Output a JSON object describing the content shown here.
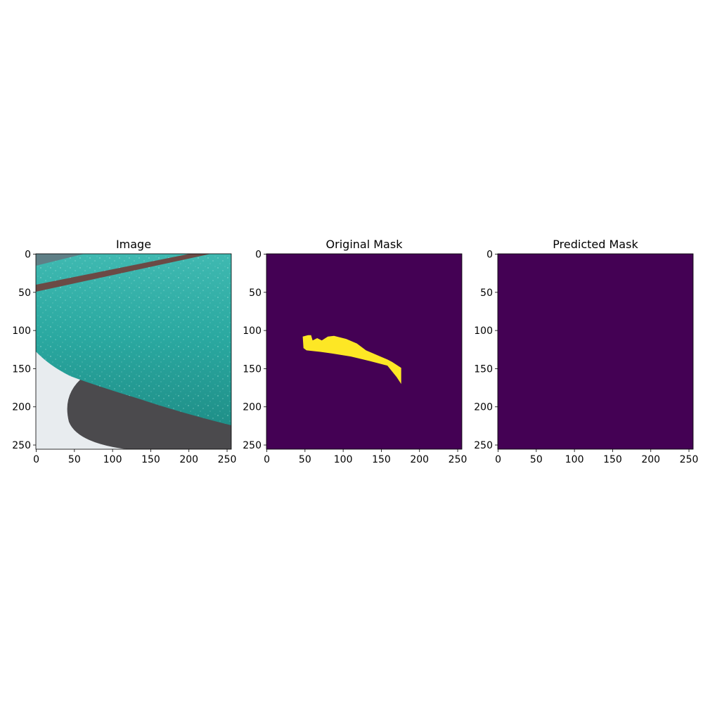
{
  "figure": {
    "panels": [
      {
        "title": "Image",
        "kind": "photo",
        "xticks": [
          0,
          50,
          100,
          150,
          200,
          250
        ],
        "yticks": [
          0,
          50,
          100,
          150,
          200,
          250
        ],
        "xlim": [
          -0.5,
          255.5
        ],
        "ylim": [
          255.5,
          -0.5
        ]
      },
      {
        "title": "Original Mask",
        "kind": "mask",
        "xticks": [
          0,
          50,
          100,
          150,
          200,
          250
        ],
        "yticks": [
          0,
          50,
          100,
          150,
          200,
          250
        ],
        "xlim": [
          -0.5,
          255.5
        ],
        "ylim": [
          255.5,
          -0.5
        ]
      },
      {
        "title": "Predicted Mask",
        "kind": "mask_empty",
        "xticks": [
          0,
          50,
          100,
          150,
          200,
          250
        ],
        "yticks": [
          0,
          50,
          100,
          150,
          200,
          250
        ],
        "xlim": [
          -0.5,
          255.5
        ],
        "ylim": [
          255.5,
          -0.5
        ]
      }
    ]
  },
  "chart_data": [
    {
      "type": "heatmap",
      "title": "Image",
      "description_values": "RGB photo, 256x256 pixels",
      "xlim": [
        -0.5,
        255.5
      ],
      "ylim": [
        255.5,
        -0.5
      ]
    },
    {
      "type": "heatmap",
      "title": "Original Mask",
      "mask_region_polygon": [
        [
          47,
          108
        ],
        [
          54,
          106
        ],
        [
          58,
          106
        ],
        [
          60,
          113
        ],
        [
          66,
          110
        ],
        [
          72,
          113
        ],
        [
          80,
          108
        ],
        [
          88,
          107
        ],
        [
          104,
          111
        ],
        [
          118,
          117
        ],
        [
          130,
          126
        ],
        [
          158,
          138
        ],
        [
          164,
          141
        ],
        [
          176,
          149
        ],
        [
          176,
          170
        ],
        [
          170,
          161
        ],
        [
          158,
          146
        ],
        [
          135,
          140
        ],
        [
          110,
          134
        ],
        [
          85,
          130
        ],
        [
          70,
          128
        ],
        [
          52,
          126
        ],
        [
          48,
          123
        ]
      ],
      "xlim": [
        -0.5,
        255.5
      ],
      "ylim": [
        255.5,
        -0.5
      ]
    },
    {
      "type": "heatmap",
      "title": "Predicted Mask",
      "mask_region_polygon": [],
      "xlim": [
        -0.5,
        255.5
      ],
      "ylim": [
        255.5,
        -0.5
      ]
    }
  ],
  "colors": {
    "mask_background": "#440154",
    "mask_foreground": "#fde725",
    "teal_body": "#2aa8a0",
    "teal_light": "#4cc4bc",
    "teal_dark": "#1f7f79",
    "ground": "#e8ecef",
    "shadow": "#4b4a4d",
    "trim": "#6b4a45"
  }
}
